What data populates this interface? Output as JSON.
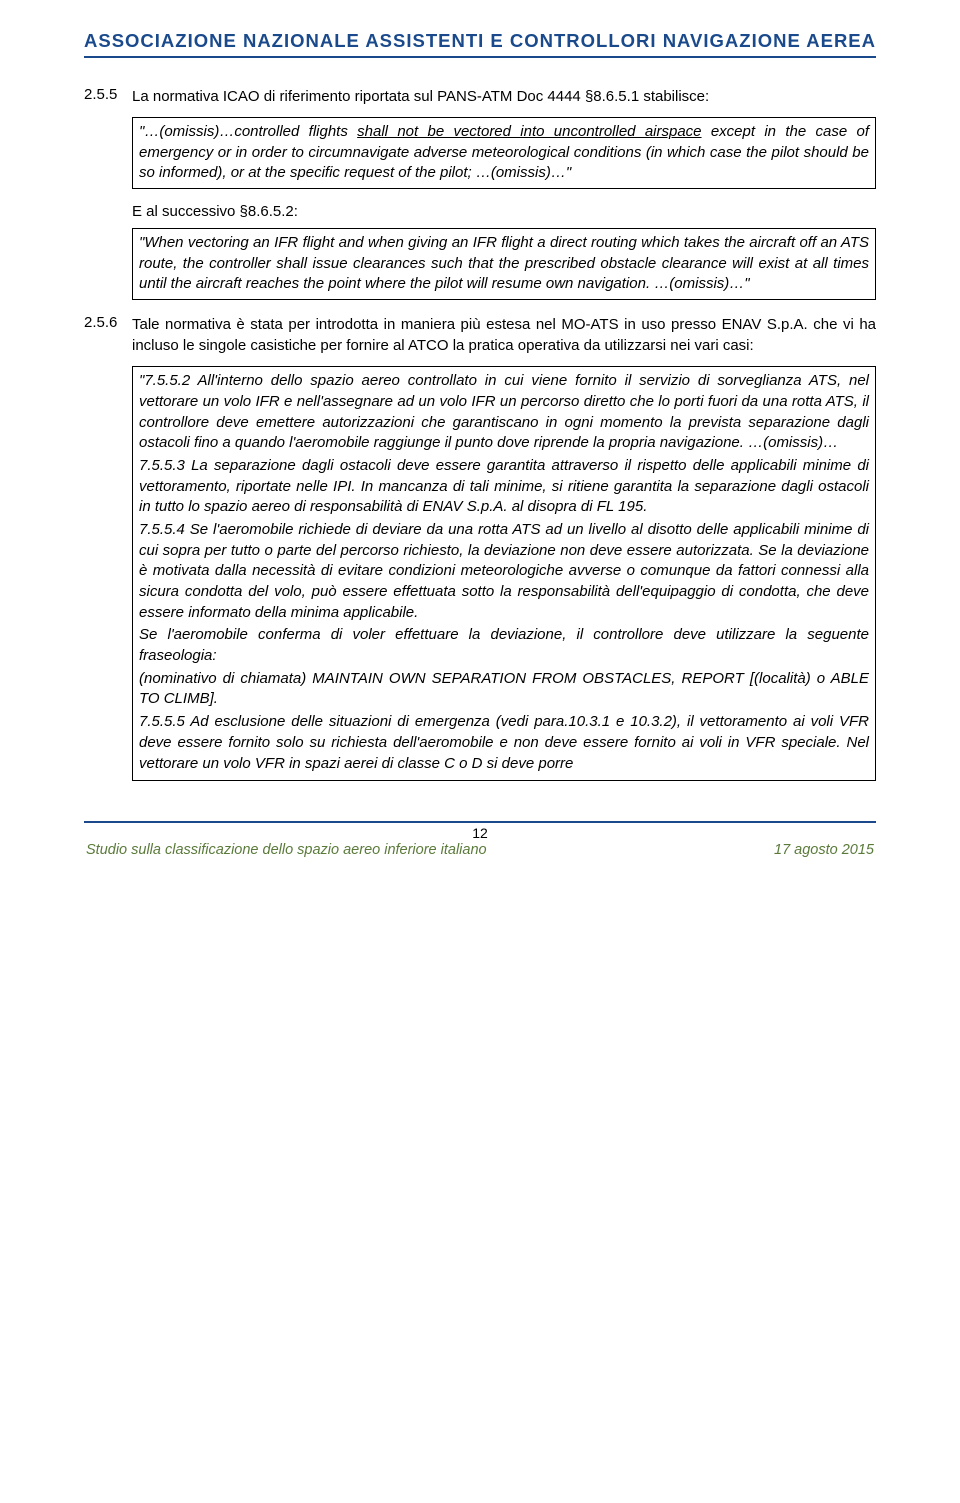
{
  "header": {
    "title": "ASSOCIAZIONE NAZIONALE ASSISTENTI E CONTROLLORI NAVIGAZIONE AEREA"
  },
  "sec255": {
    "num": "2.5.5",
    "intro": "La normativa ICAO di riferimento riportata sul PANS-ATM Doc 4444 §8.6.5.1 stabilisce:",
    "quote1_pre": "\"…(omissis)…controlled flights ",
    "quote1_und": "shall not be vectored into uncontrolled airspace",
    "quote1_post": " except in the case of emergency or in order to circumnavigate adverse meteorological conditions (in which case the pilot should be so informed), or at the specific request of the pilot; …(omissis)…\"",
    "sub_intro": "E al successivo §8.6.5.2:",
    "quote2": "\"When vectoring an IFR flight and when giving an IFR flight a direct routing which takes the aircraft off an ATS route, the controller shall issue clearances such that the prescribed obstacle clearance will exist at all times until the aircraft reaches the point where the pilot will resume own navigation. …(omissis)…\""
  },
  "sec256": {
    "num": "2.5.6",
    "intro": "Tale normativa è stata per introdotta in maniera più estesa nel MO-ATS in uso presso ENAV S.p.A. che vi ha incluso le singole casistiche per fornire al ATCO la pratica operativa da utilizzarsi nei vari casi:",
    "p1": "\"7.5.5.2 All'interno dello spazio aereo controllato in cui viene fornito il servizio di sorveglianza ATS, nel vettorare un volo IFR e nell'assegnare ad un volo IFR un percorso diretto che lo porti fuori da una rotta ATS, il controllore deve emettere autorizzazioni che garantiscano in ogni momento la prevista separazione dagli ostacoli fino a quando l'aeromobile raggiunge il punto dove riprende la propria navigazione. …(omissis)…",
    "p2": "7.5.5.3 La separazione dagli ostacoli deve essere garantita attraverso il rispetto delle applicabili minime di vettoramento, riportate nelle IPI. In mancanza di tali minime, si ritiene garantita la separazione dagli ostacoli in tutto lo spazio aereo di responsabilità di ENAV S.p.A. al disopra di FL 195.",
    "p3": "7.5.5.4 Se l'aeromobile richiede di deviare da una rotta ATS ad un livello al disotto delle applicabili minime di cui sopra per tutto o parte del percorso richiesto, la deviazione non deve essere autorizzata. Se la deviazione è motivata dalla necessità di evitare condizioni meteorologiche avverse o comunque da fattori connessi alla sicura condotta del volo, può essere effettuata sotto la responsabilità dell'equipaggio di condotta, che deve essere informato della minima applicabile.",
    "p4": "Se l'aeromobile conferma di voler effettuare la deviazione, il controllore deve utilizzare la seguente fraseologia:",
    "p5": "(nominativo di chiamata) MAINTAIN OWN SEPARATION FROM OBSTACLES, REPORT [(località) o ABLE TO CLIMB].",
    "p6": "7.5.5.5 Ad esclusione delle situazioni di emergenza (vedi para.10.3.1 e 10.3.2), il vettoramento ai voli VFR deve essere fornito solo su richiesta dell'aeromobile e non deve essere fornito ai voli in VFR speciale. Nel vettorare un volo VFR in spazi aerei di classe C o D si deve porre"
  },
  "footer": {
    "page_num": "12",
    "left": "Studio sulla classificazione dello spazio aereo inferiore italiano",
    "right": "17 agosto 2015"
  }
}
